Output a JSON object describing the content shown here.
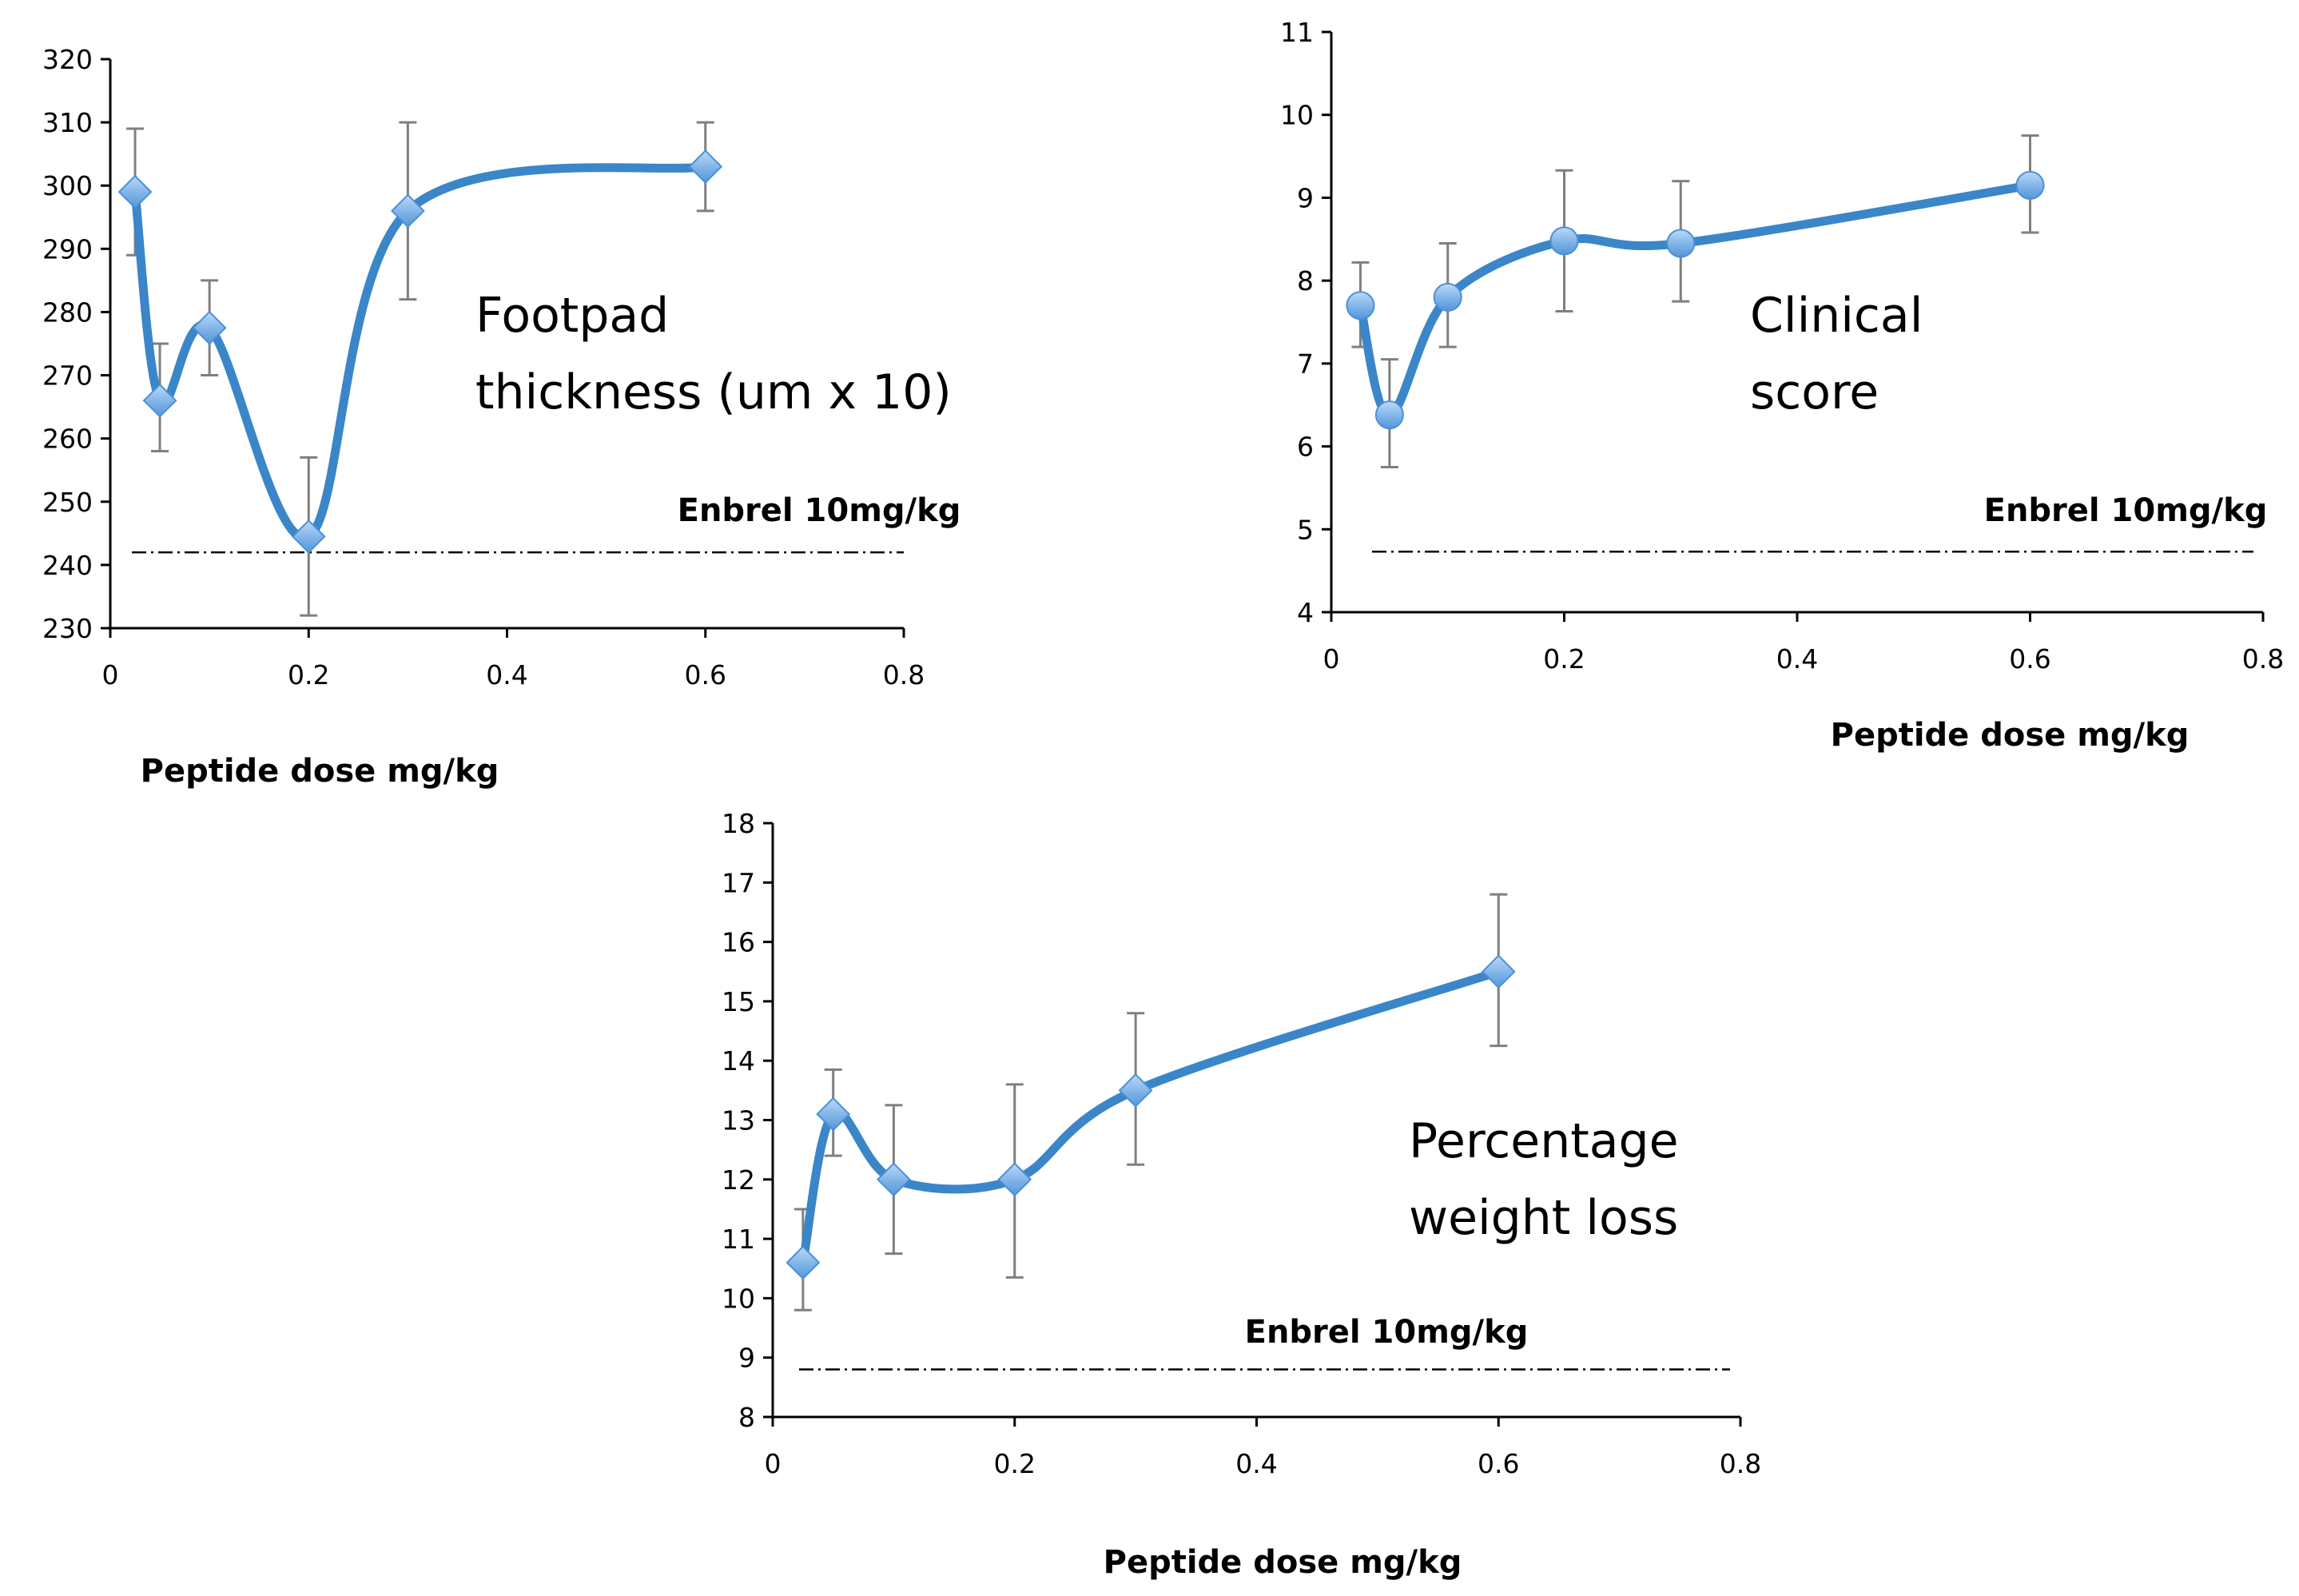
{
  "chart_data": [
    {
      "type": "line",
      "title": "",
      "annotation_lines": [
        "Footpad",
        "thickness  (um x 10)"
      ],
      "xlabel": "Peptide dose mg/kg",
      "ylabel": "",
      "xlim": [
        0,
        0.8
      ],
      "ylim": [
        230,
        320
      ],
      "xticks": [
        "0",
        "0.2",
        "0.4",
        "0.6",
        "0.8"
      ],
      "yticks": [
        "230",
        "240",
        "250",
        "260",
        "270",
        "280",
        "290",
        "300",
        "310",
        "320"
      ],
      "marker": "diamond",
      "series": [
        {
          "name": "Footpad thickness",
          "x": [
            0.025,
            0.05,
            0.1,
            0.2,
            0.3,
            0.6
          ],
          "y": [
            299,
            266,
            277.5,
            244.5,
            296,
            303
          ],
          "err_lo": [
            289,
            258,
            270,
            232,
            282,
            296
          ],
          "err_hi": [
            309,
            275,
            285,
            257,
            310,
            310
          ]
        }
      ],
      "reference": {
        "label": "Enbrel 10mg/kg",
        "value": 242
      }
    },
    {
      "type": "line",
      "title": "",
      "annotation_lines": [
        "Clinical",
        "score"
      ],
      "xlabel": "Peptide dose mg/kg",
      "ylabel": "",
      "xlim": [
        0,
        0.8
      ],
      "ylim": [
        4,
        11
      ],
      "xticks": [
        "0",
        "0.2",
        "0.4",
        "0.6",
        "0.8"
      ],
      "yticks": [
        "4",
        "5",
        "6",
        "7",
        "8",
        "9",
        "10",
        "11"
      ],
      "marker": "circle",
      "series": [
        {
          "name": "Clinical score",
          "x": [
            0.025,
            0.05,
            0.1,
            0.2,
            0.3,
            0.6
          ],
          "y": [
            7.7,
            6.38,
            7.8,
            8.48,
            8.45,
            9.15
          ],
          "err_lo": [
            7.2,
            5.75,
            7.2,
            7.63,
            7.75,
            8.58
          ],
          "err_hi": [
            8.22,
            7.05,
            8.45,
            9.33,
            9.2,
            9.75
          ]
        }
      ],
      "reference": {
        "label": "Enbrel 10mg/kg",
        "value": 4.73
      }
    },
    {
      "type": "line",
      "title": "",
      "annotation_lines": [
        "Percentage",
        "weight loss"
      ],
      "xlabel": "Peptide dose mg/kg",
      "ylabel": "",
      "xlim": [
        0,
        0.8
      ],
      "ylim": [
        8,
        18
      ],
      "xticks": [
        "0",
        "0.2",
        "0.4",
        "0.6",
        "0.8"
      ],
      "yticks": [
        "8",
        "9",
        "10",
        "11",
        "12",
        "13",
        "14",
        "15",
        "16",
        "17",
        "18"
      ],
      "marker": "diamond",
      "series": [
        {
          "name": "Percentage weight loss",
          "x": [
            0.025,
            0.05,
            0.1,
            0.2,
            0.3,
            0.6
          ],
          "y": [
            10.6,
            13.1,
            12.0,
            12.0,
            13.5,
            15.5
          ],
          "err_lo": [
            9.8,
            12.4,
            10.75,
            10.35,
            12.25,
            14.25
          ],
          "err_hi": [
            11.5,
            13.85,
            13.25,
            13.6,
            14.8,
            16.8
          ]
        }
      ],
      "reference": {
        "label": "Enbrel 10mg/kg",
        "value": 8.8
      }
    }
  ]
}
